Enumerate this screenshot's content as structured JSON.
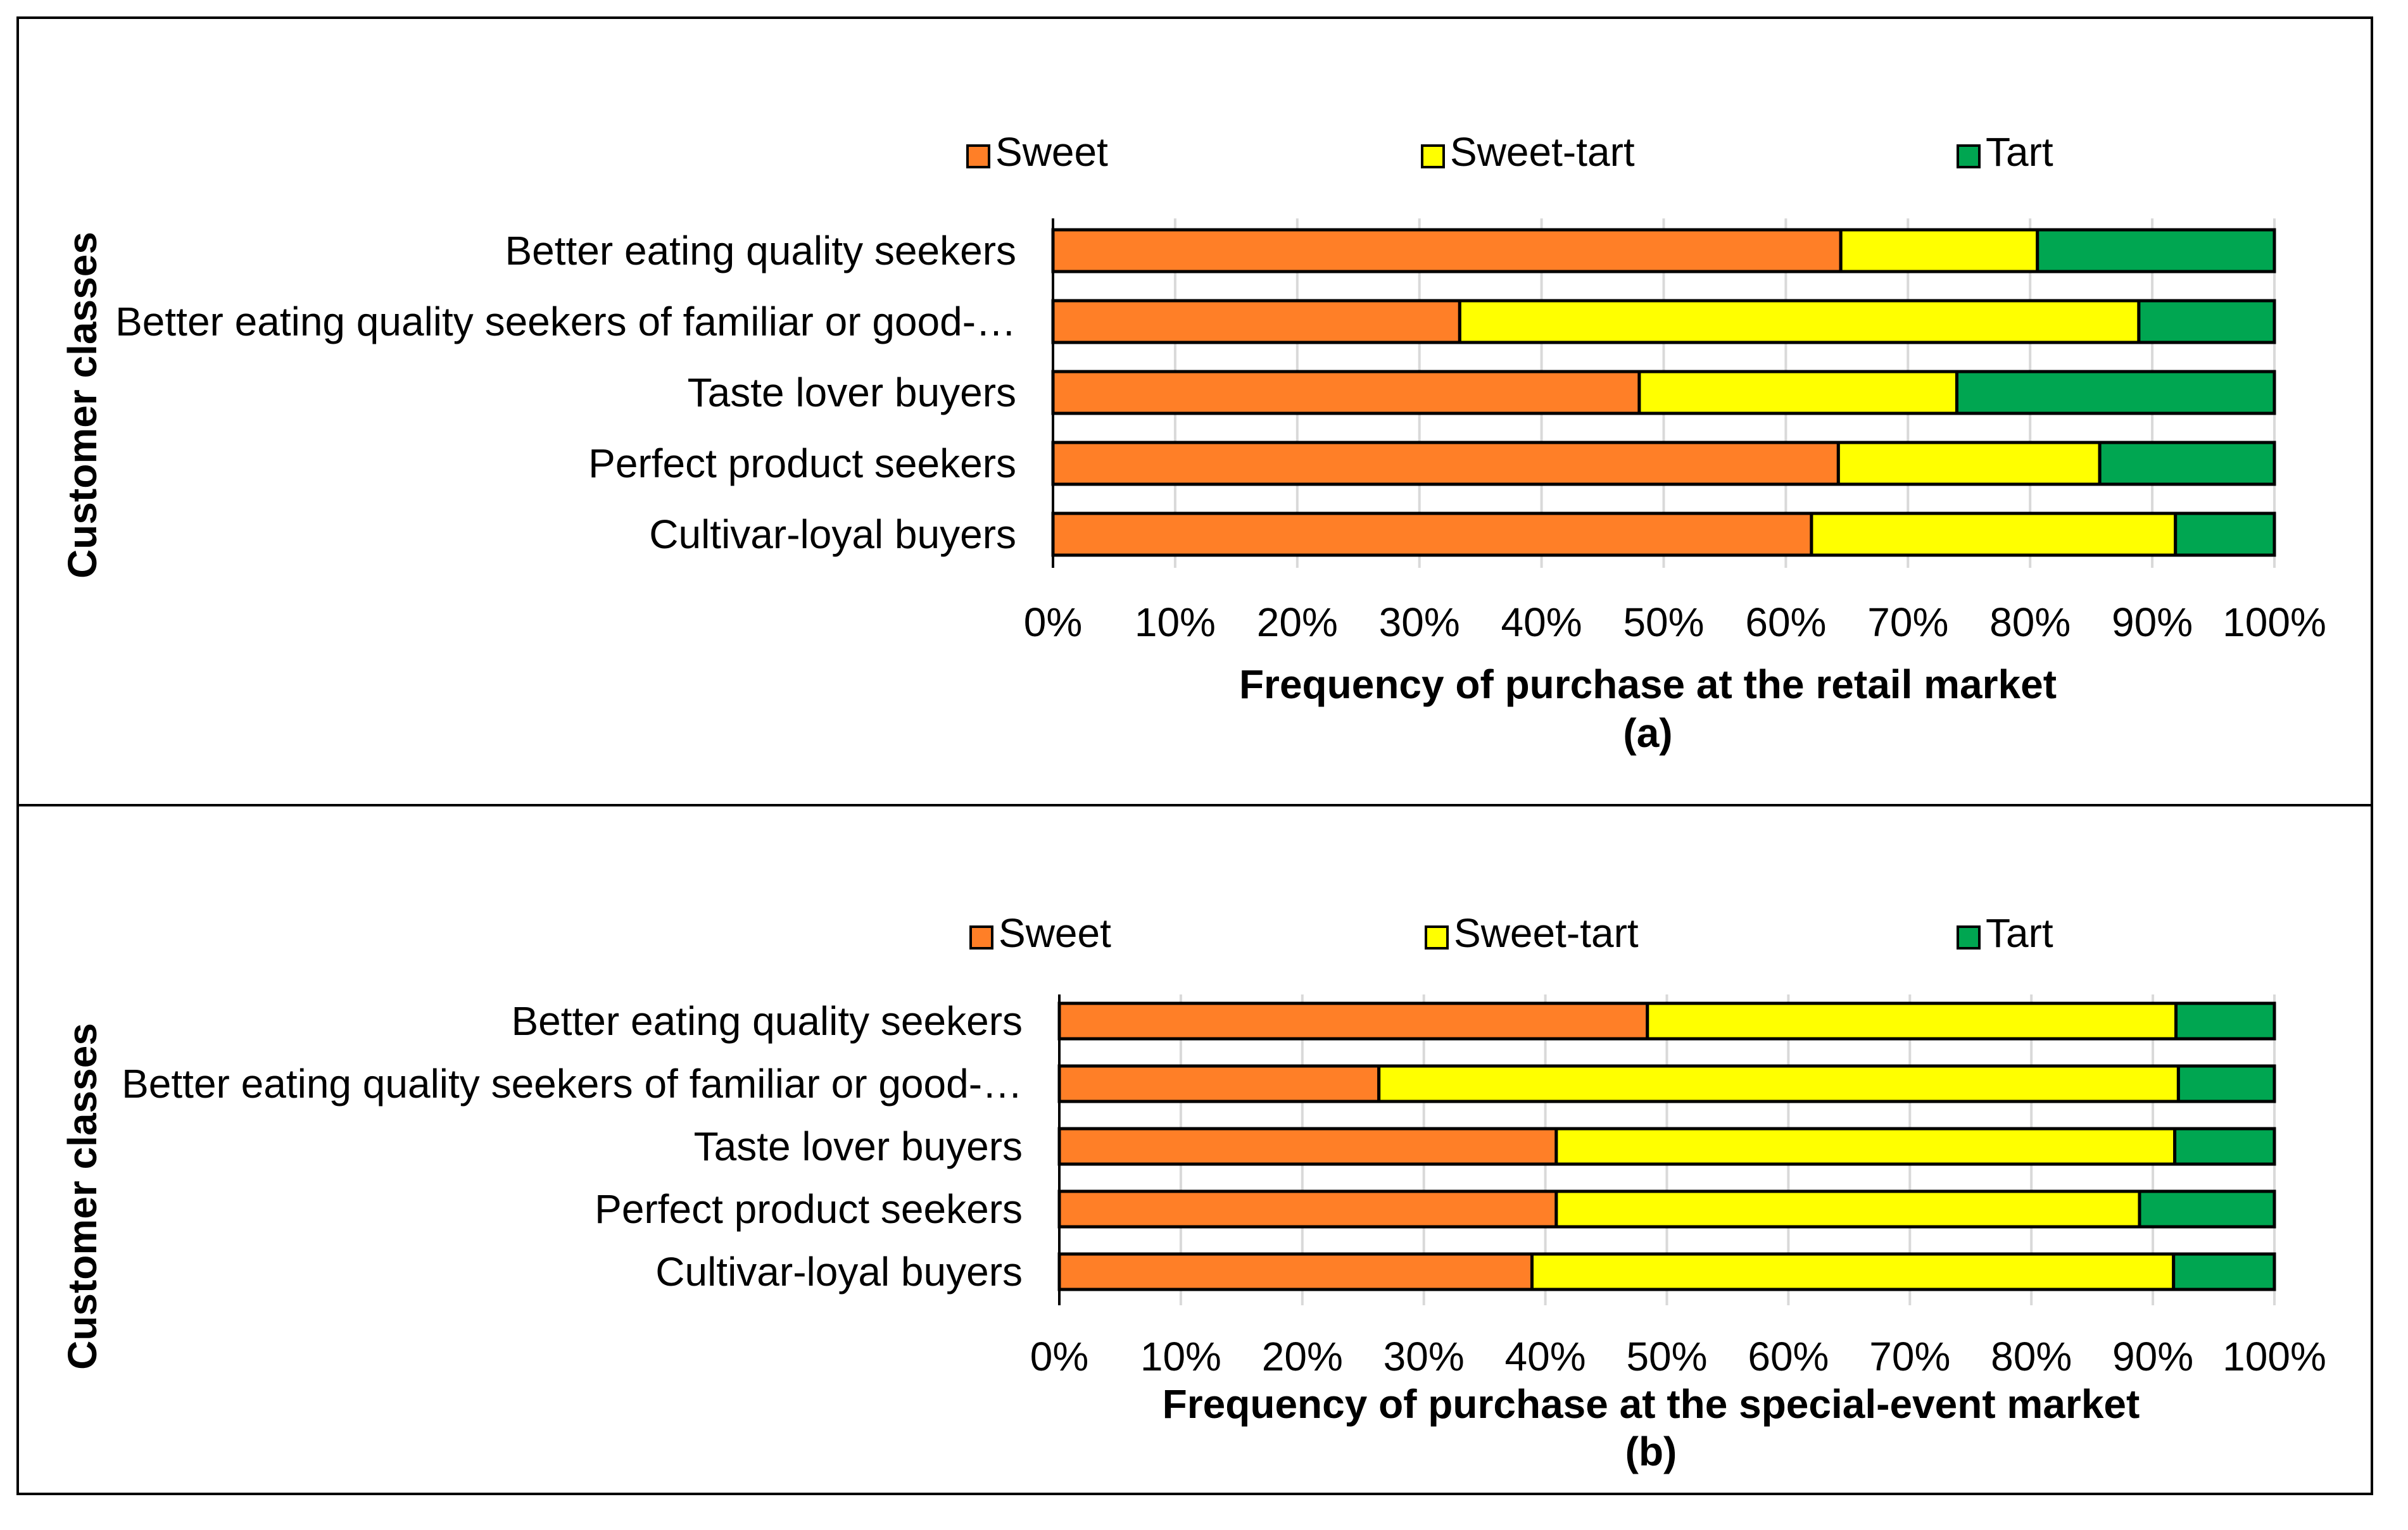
{
  "colors": {
    "Sweet": "#ff7f27",
    "Sweet-tart": "#ffff00",
    "Tart": "#00a651",
    "grid": "#d9d9d9",
    "outline": "#000000"
  },
  "chart_data": [
    {
      "type": "bar",
      "orientation": "horizontal",
      "stacked": "percent",
      "panel": "(a)",
      "xlabel": "Frequency of purchase at the retail market",
      "ylabel": "Customer classes",
      "xlim": [
        0,
        100
      ],
      "x_ticks": [
        "0%",
        "10%",
        "20%",
        "30%",
        "40%",
        "50%",
        "60%",
        "70%",
        "80%",
        "90%",
        "100%"
      ],
      "legend": [
        "Sweet",
        "Sweet-tart",
        "Tart"
      ],
      "legend_position": "top",
      "grid": "vertical",
      "categories": [
        "Better eating quality seekers",
        "Better eating quality seekers of familiar or good-…",
        "Taste lover buyers",
        "Perfect product seekers",
        "Cultivar-loyal buyers"
      ],
      "series": [
        {
          "name": "Sweet",
          "values": [
            64.5,
            33.3,
            48.0,
            64.3,
            62.1
          ]
        },
        {
          "name": "Sweet-tart",
          "values": [
            16.1,
            55.6,
            26.0,
            21.4,
            29.8
          ]
        },
        {
          "name": "Tart",
          "values": [
            19.4,
            11.1,
            26.0,
            14.3,
            8.1
          ]
        }
      ]
    },
    {
      "type": "bar",
      "orientation": "horizontal",
      "stacked": "percent",
      "panel": "(b)",
      "xlabel": "Frequency of purchase at the special-event market",
      "ylabel": "Customer classes",
      "xlim": [
        0,
        100
      ],
      "x_ticks": [
        "0%",
        "10%",
        "20%",
        "30%",
        "40%",
        "50%",
        "60%",
        "70%",
        "80%",
        "90%",
        "100%"
      ],
      "legend": [
        "Sweet",
        "Sweet-tart",
        "Tart"
      ],
      "legend_position": "top",
      "grid": "vertical",
      "categories": [
        "Better eating quality seekers",
        "Better eating quality seekers of familiar or good-…",
        "Taste lover buyers",
        "Perfect product seekers",
        "Cultivar-loyal buyers"
      ],
      "series": [
        {
          "name": "Sweet",
          "values": [
            48.4,
            26.3,
            40.9,
            40.9,
            38.9
          ]
        },
        {
          "name": "Sweet-tart",
          "values": [
            43.5,
            65.8,
            50.9,
            48.0,
            52.8
          ]
        },
        {
          "name": "Tart",
          "values": [
            8.1,
            7.9,
            8.2,
            11.1,
            8.3
          ]
        }
      ]
    }
  ]
}
